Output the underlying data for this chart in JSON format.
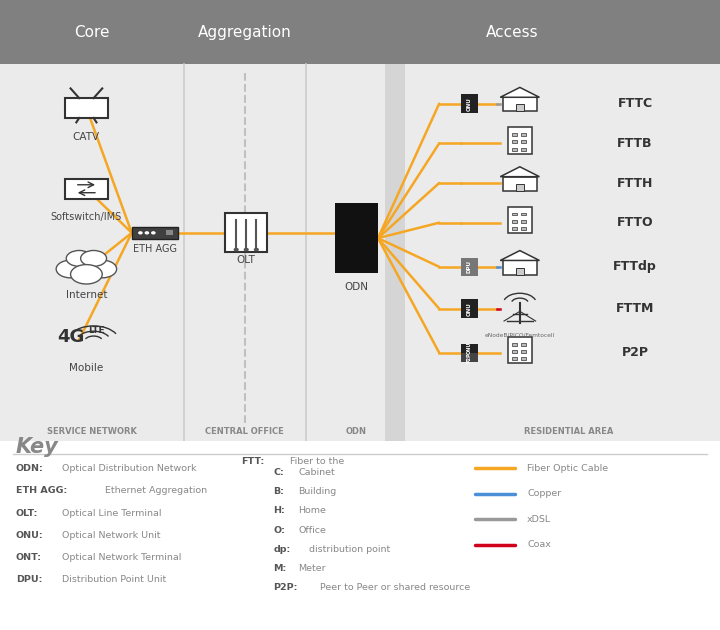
{
  "bg_color": "#ffffff",
  "header_color": "#808080",
  "section_bg": "#ebebeb",
  "orange": "#f5a623",
  "blue": "#4a90d9",
  "gray": "#999999",
  "red": "#d0021b",
  "headers": [
    "Core",
    "Aggregation",
    "Access"
  ],
  "footer_labels": [
    "SERVICE NETWORK",
    "CENTRAL OFFICE",
    "ODN",
    "RESIDENTIAL AREA"
  ],
  "ftt_labels": [
    "FTTC",
    "FTTB",
    "FTTH",
    "FTTO",
    "FTTdp",
    "FTTM",
    "P2P"
  ],
  "key_left": [
    [
      "ODN:",
      "Optical Distribution Network"
    ],
    [
      "ETH AGG:",
      "Ethernet Aggregation"
    ],
    [
      "OLT:",
      "Optical Line Terminal"
    ],
    [
      "ONU:",
      "Optical Network Unit"
    ],
    [
      "ONT:",
      "Optical Network Terminal"
    ],
    [
      "DPU:",
      "Distribution Point Unit"
    ]
  ],
  "key_middle_title_bold": "FTT:",
  "key_middle_title_rest": " Fiber to the",
  "key_middle": [
    [
      "C:",
      "Cabinet"
    ],
    [
      "B:",
      "Building"
    ],
    [
      "H:",
      "Home"
    ],
    [
      "O:",
      "Office"
    ],
    [
      "dp:",
      "distribution point"
    ],
    [
      "M:",
      "Meter"
    ],
    [
      "P2P:",
      "Peer to Peer or shared resource"
    ]
  ],
  "key_right": [
    [
      "Fiber Optic Cable",
      "#f5a623"
    ],
    [
      "Copper",
      "#4a90d9"
    ],
    [
      "xDSL",
      "#999999"
    ],
    [
      "Coax",
      "#d0021b"
    ]
  ]
}
